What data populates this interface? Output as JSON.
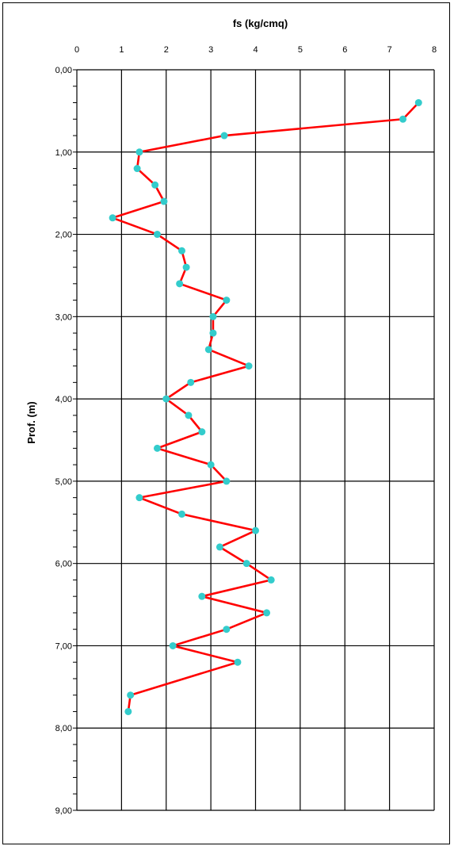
{
  "chart_data": {
    "type": "line",
    "title": "fs (kg/cmq)",
    "xlabel": "fs (kg/cmq)",
    "ylabel": "Prof. (m)",
    "xlim": [
      0,
      8
    ],
    "ylim": [
      0,
      9
    ],
    "y_inverted": true,
    "x_axis_position": "top",
    "grid": true,
    "x_ticks": [
      "0",
      "1",
      "2",
      "3",
      "4",
      "5",
      "6",
      "7",
      "8"
    ],
    "y_ticks": [
      "0,00",
      "1,00",
      "2,00",
      "3,00",
      "4,00",
      "5,00",
      "6,00",
      "7,00",
      "8,00",
      "9,00"
    ],
    "line_color": "#ff0000",
    "marker_color": "#33cccc",
    "series": [
      {
        "x": [
          7.65,
          7.3,
          3.3,
          1.4,
          1.35,
          1.75,
          1.95,
          0.8,
          1.8,
          2.35,
          2.45,
          2.3,
          3.35,
          3.05,
          3.05,
          2.95,
          3.85,
          2.55,
          2.0,
          2.5,
          2.8,
          1.8,
          3.0,
          3.35,
          1.4,
          2.35,
          4.0,
          3.2,
          3.8,
          4.35,
          2.8,
          4.25,
          3.35,
          2.15,
          3.6,
          1.2,
          1.15
        ],
        "y": [
          0.4,
          0.6,
          0.8,
          1.0,
          1.2,
          1.4,
          1.6,
          1.8,
          2.0,
          2.2,
          2.4,
          2.6,
          2.8,
          3.0,
          3.2,
          3.4,
          3.6,
          3.8,
          4.0,
          4.2,
          4.4,
          4.6,
          4.8,
          5.0,
          5.2,
          5.4,
          5.6,
          5.8,
          6.0,
          6.2,
          6.4,
          6.6,
          6.8,
          7.0,
          7.2,
          7.6,
          7.8
        ]
      }
    ]
  }
}
